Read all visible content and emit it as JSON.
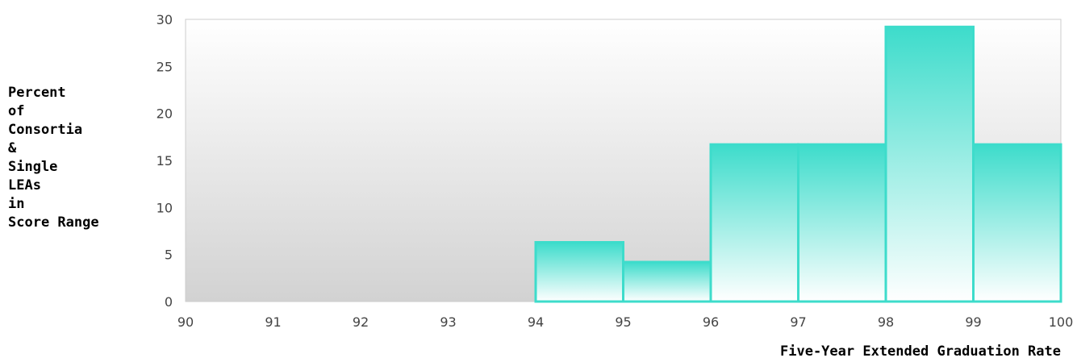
{
  "chart_data": {
    "type": "bar",
    "title": "",
    "xlabel": "Five-Year Extended Graduation Rate",
    "ylabel_lines": [
      "Percent",
      "of",
      "Consortia",
      "&",
      "Single",
      "LEAs",
      "in",
      "Score Range"
    ],
    "xlim": [
      90,
      100
    ],
    "ylim": [
      0,
      30
    ],
    "x_ticks": [
      90,
      91,
      92,
      93,
      94,
      95,
      96,
      97,
      98,
      99,
      100
    ],
    "y_ticks": [
      0,
      5,
      10,
      15,
      20,
      25,
      30
    ],
    "bins": [
      {
        "from": 94,
        "to": 95,
        "value": 6.3
      },
      {
        "from": 95,
        "to": 96,
        "value": 4.2
      },
      {
        "from": 96,
        "to": 97,
        "value": 16.7
      },
      {
        "from": 97,
        "to": 98,
        "value": 16.7
      },
      {
        "from": 98,
        "to": 99,
        "value": 29.2
      },
      {
        "from": 99,
        "to": 100,
        "value": 16.7
      }
    ],
    "grid": false,
    "legend": "none",
    "colors": {
      "bar_edge": "#3ddccb",
      "bar_top": "#3ddccb",
      "bar_bottom": "#ffffff",
      "plot_bg_top": "#ffffff",
      "plot_bg_bottom": "#d2d2d2",
      "axis": "#cccccc"
    }
  }
}
